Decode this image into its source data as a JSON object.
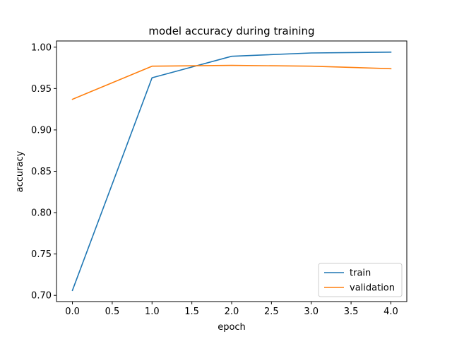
{
  "chart_data": {
    "type": "line",
    "title": "model accuracy during training",
    "xlabel": "epoch",
    "ylabel": "accuracy",
    "x": [
      0,
      1,
      2,
      3,
      4
    ],
    "series": [
      {
        "name": "train",
        "values": [
          0.706,
          0.963,
          0.989,
          0.993,
          0.994
        ],
        "color": "#1f77b4"
      },
      {
        "name": "validation",
        "values": [
          0.937,
          0.977,
          0.978,
          0.977,
          0.974
        ],
        "color": "#ff7f0e"
      }
    ],
    "xlim": [
      -0.2,
      4.2
    ],
    "ylim": [
      0.6925,
      1.0075
    ],
    "xticks": [
      "0.0",
      "0.5",
      "1.0",
      "1.5",
      "2.0",
      "2.5",
      "3.0",
      "3.5",
      "4.0"
    ],
    "yticks": [
      "0.70",
      "0.75",
      "0.80",
      "0.85",
      "0.90",
      "0.95",
      "1.00"
    ],
    "grid": false,
    "legend_position": "lower-right"
  }
}
